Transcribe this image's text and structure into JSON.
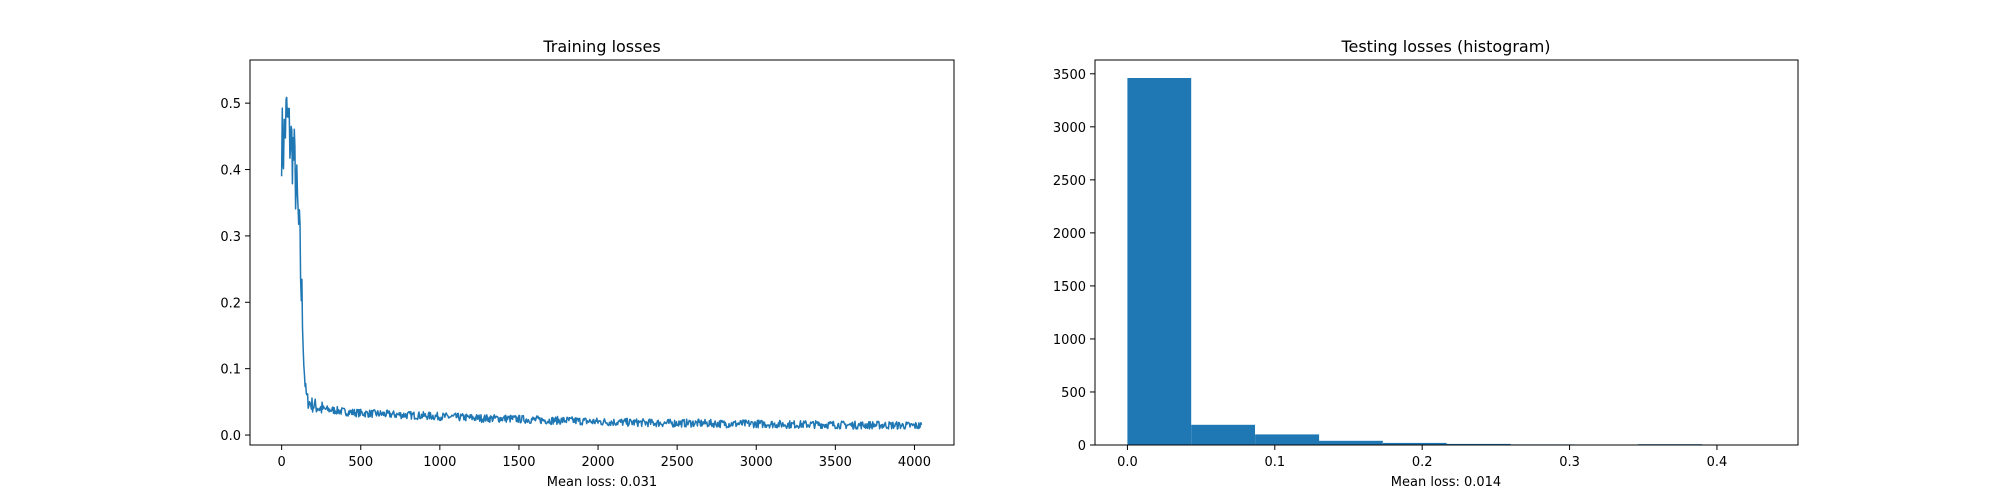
{
  "chart_data": [
    {
      "type": "line",
      "title": "Training losses",
      "xlabel": "Mean loss: 0.031",
      "ylabel": "",
      "xlim": [
        -200,
        4250
      ],
      "ylim": [
        -0.015,
        0.565
      ],
      "xticks": [
        0,
        500,
        1000,
        1500,
        2000,
        2500,
        3000,
        3500,
        4000
      ],
      "xtick_labels": [
        "0",
        "500",
        "1000",
        "1500",
        "2000",
        "2500",
        "3000",
        "3500",
        "4000"
      ],
      "yticks": [
        0.0,
        0.1,
        0.2,
        0.3,
        0.4,
        0.5
      ],
      "ytick_labels": [
        "0.0",
        "0.1",
        "0.2",
        "0.3",
        "0.4",
        "0.5"
      ],
      "grid": false,
      "color": "#1f77b4",
      "series": [
        {
          "x": [
            0,
            10,
            20,
            30,
            40,
            50,
            60,
            70,
            80,
            90,
            100,
            110,
            120,
            130,
            140,
            150,
            160,
            170,
            180,
            190,
            200,
            250,
            300,
            350,
            400,
            500,
            600,
            700,
            800,
            900,
            1000,
            1100,
            1200,
            1300,
            1400,
            1500,
            1600,
            1700,
            1800,
            1900,
            2000,
            2200,
            2400,
            2600,
            2800,
            3000,
            3200,
            3400,
            3600,
            3800,
            4000,
            4050
          ],
          "y": [
            0.45,
            0.43,
            0.46,
            0.48,
            0.47,
            0.45,
            0.44,
            0.43,
            0.41,
            0.38,
            0.34,
            0.3,
            0.25,
            0.18,
            0.11,
            0.07,
            0.055,
            0.05,
            0.048,
            0.046,
            0.045,
            0.04,
            0.038,
            0.037,
            0.035,
            0.033,
            0.032,
            0.031,
            0.03,
            0.029,
            0.028,
            0.027,
            0.026,
            0.025,
            0.025,
            0.024,
            0.023,
            0.022,
            0.022,
            0.021,
            0.02,
            0.019,
            0.018,
            0.018,
            0.017,
            0.017,
            0.016,
            0.016,
            0.015,
            0.015,
            0.014,
            0.014
          ]
        }
      ]
    },
    {
      "type": "bar",
      "title": "Testing losses (histogram)",
      "xlabel": "Mean loss: 0.014",
      "ylabel": "",
      "xlim": [
        -0.022,
        0.455
      ],
      "ylim": [
        0,
        3630
      ],
      "xticks": [
        0.0,
        0.1,
        0.2,
        0.3,
        0.4
      ],
      "xtick_labels": [
        "0.0",
        "0.1",
        "0.2",
        "0.3",
        "0.4"
      ],
      "yticks": [
        0,
        500,
        1000,
        1500,
        2000,
        2500,
        3000,
        3500
      ],
      "ytick_labels": [
        "0",
        "500",
        "1000",
        "1500",
        "2000",
        "2500",
        "3000",
        "3500"
      ],
      "grid": false,
      "color": "#1f77b4",
      "bin_edges": [
        0.0,
        0.0433,
        0.0866,
        0.13,
        0.1733,
        0.2166,
        0.26,
        0.3033,
        0.3466,
        0.39,
        0.4333
      ],
      "counts": [
        3460,
        190,
        100,
        40,
        20,
        10,
        6,
        3,
        8,
        2
      ]
    }
  ]
}
